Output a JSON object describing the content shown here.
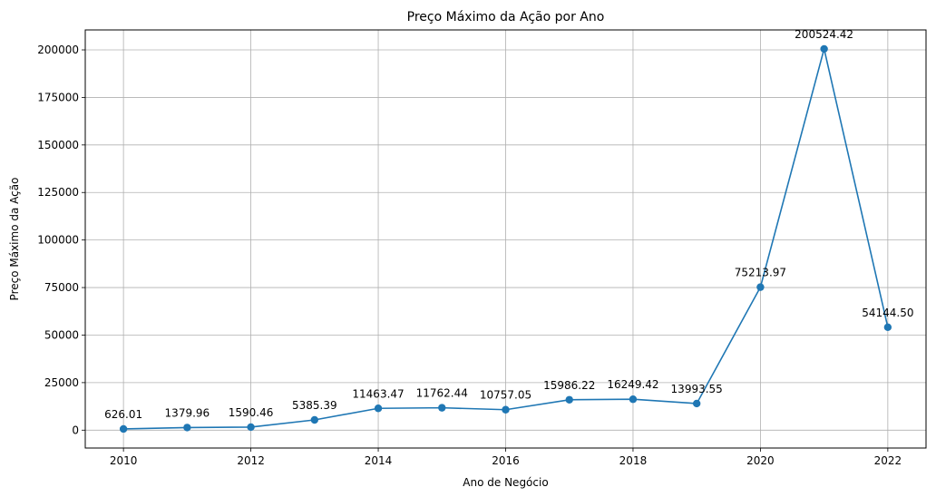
{
  "chart_data": {
    "type": "line",
    "title": "Preço Máximo da Ação por Ano",
    "xlabel": "Ano de Negócio",
    "ylabel": "Preço Máximo da Ação",
    "x": [
      2010,
      2011,
      2012,
      2013,
      2014,
      2015,
      2016,
      2017,
      2018,
      2019,
      2020,
      2021,
      2022
    ],
    "series": [
      {
        "values": [
          626.01,
          1379.96,
          1590.46,
          5385.39,
          11463.47,
          11762.44,
          10757.05,
          15986.22,
          16249.42,
          13993.55,
          75213.97,
          200524.42,
          54144.5
        ],
        "labels": [
          "626.01",
          "1379.96",
          "1590.46",
          "5385.39",
          "11463.47",
          "11762.44",
          "10757.05",
          "15986.22",
          "16249.42",
          "13993.55",
          "75213.97",
          "200524.42",
          "54144.50"
        ]
      }
    ],
    "xticks": [
      2010,
      2012,
      2014,
      2016,
      2018,
      2020,
      2022
    ],
    "yticks": [
      0,
      25000,
      50000,
      75000,
      100000,
      125000,
      150000,
      175000,
      200000
    ],
    "xlim": [
      2009.4,
      2022.6
    ],
    "ylim": [
      -9400,
      210500
    ],
    "grid": true,
    "line_color": "#1f77b4",
    "grid_color": "#b0b0b0"
  }
}
